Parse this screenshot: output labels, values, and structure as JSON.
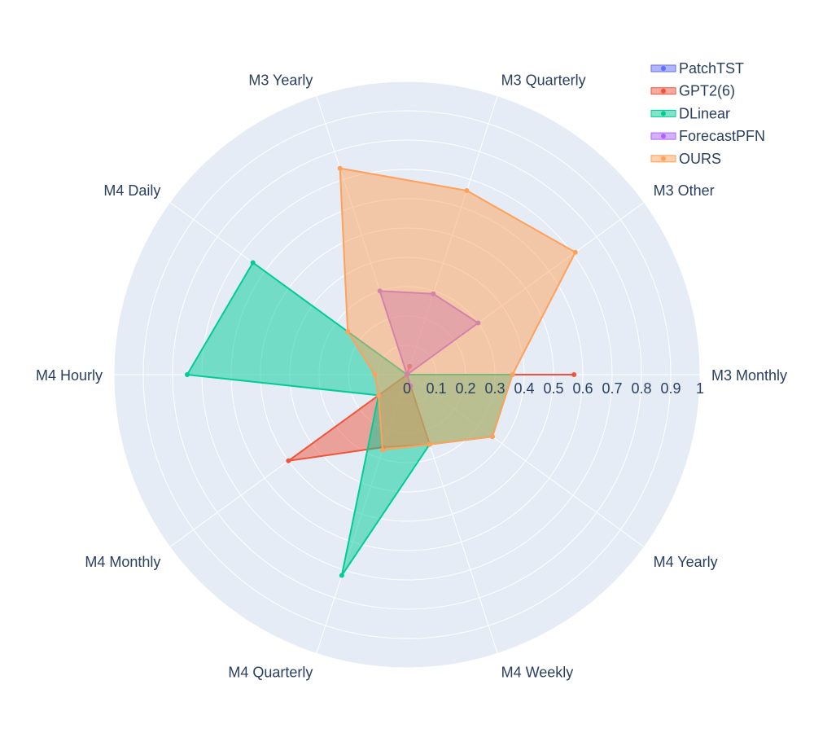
{
  "chart_data": {
    "type": "radar",
    "categories": [
      "M3 Monthly",
      "M3 Other",
      "M3 Quarterly",
      "M3 Yearly",
      "M4 Daily",
      "M4 Hourly",
      "M4 Monthly",
      "M4 Quarterly",
      "M4 Weekly",
      "M4 Yearly"
    ],
    "radial_range": [
      0,
      1
    ],
    "radial_ticks": [
      "0",
      "0.1",
      "0.2",
      "0.3",
      "0.4",
      "0.5",
      "0.6",
      "0.7",
      "0.8",
      "0.9",
      "1"
    ],
    "grid": true,
    "legend_position": "top-right",
    "series": [
      {
        "name": "PatchTST",
        "color": "#636efa",
        "values": [
          0,
          0,
          0,
          0,
          0,
          0,
          0,
          0,
          0,
          0
        ]
      },
      {
        "name": "GPT2(6)",
        "color": "#ef553b",
        "values": [
          0.57,
          0,
          0.03,
          0,
          0,
          0,
          0.5,
          0.26,
          0.25,
          0
        ]
      },
      {
        "name": "DLinear",
        "color": "#00cc96",
        "values": [
          0.36,
          0,
          0,
          0,
          0.65,
          0.75,
          0.12,
          0.72,
          0.25,
          0.36
        ]
      },
      {
        "name": "ForecastPFN",
        "color": "#ab63fa",
        "values": [
          0,
          0.3,
          0.29,
          0.3,
          0,
          0,
          0,
          0,
          0.04,
          0
        ]
      },
      {
        "name": "OURS",
        "color": "#ffa15a",
        "values": [
          0.36,
          0.71,
          0.66,
          0.74,
          0.25,
          0.11,
          0.12,
          0.27,
          0.25,
          0.36
        ]
      }
    ]
  }
}
